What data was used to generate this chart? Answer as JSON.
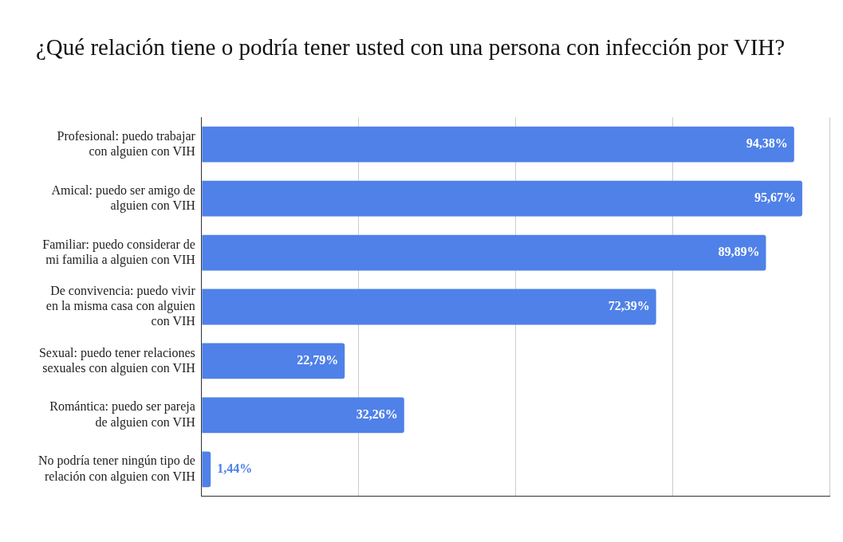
{
  "chart_data": {
    "type": "bar",
    "orientation": "horizontal",
    "title": "¿Qué relación tiene o podría tener usted con una persona con infección por VIH?",
    "categories": [
      "Profesional: puedo trabajar con alguien con VIH",
      "Amical: puedo ser amigo de alguien con VIH",
      "Familiar: puedo considerar de mi familia a alguien con VIH",
      "De convivencia: puedo vivir en la misma casa con alguien con VIH",
      "Sexual: puedo tener relaciones sexuales con alguien con VIH",
      "Romántica: puedo ser pareja de alguien con VIH",
      "No podría tener ningún tipo de relación con alguien con VIH"
    ],
    "values": [
      94.38,
      95.67,
      89.89,
      72.39,
      22.79,
      32.26,
      1.44
    ],
    "value_labels": [
      "94,38%",
      "95,67%",
      "89,89%",
      "72,39%",
      "22,79%",
      "32,26%",
      "1,44%"
    ],
    "color": "#4f81e8",
    "xlim": [
      0,
      100
    ],
    "xticks": [
      {
        "value": 0,
        "label": null
      },
      {
        "value": 25,
        "label": null
      },
      {
        "value": 50,
        "label": null
      },
      {
        "value": 75,
        "label": null
      },
      {
        "value": 100,
        "label": null
      }
    ],
    "grid": "x",
    "tick_labels": "y",
    "legend": false
  }
}
